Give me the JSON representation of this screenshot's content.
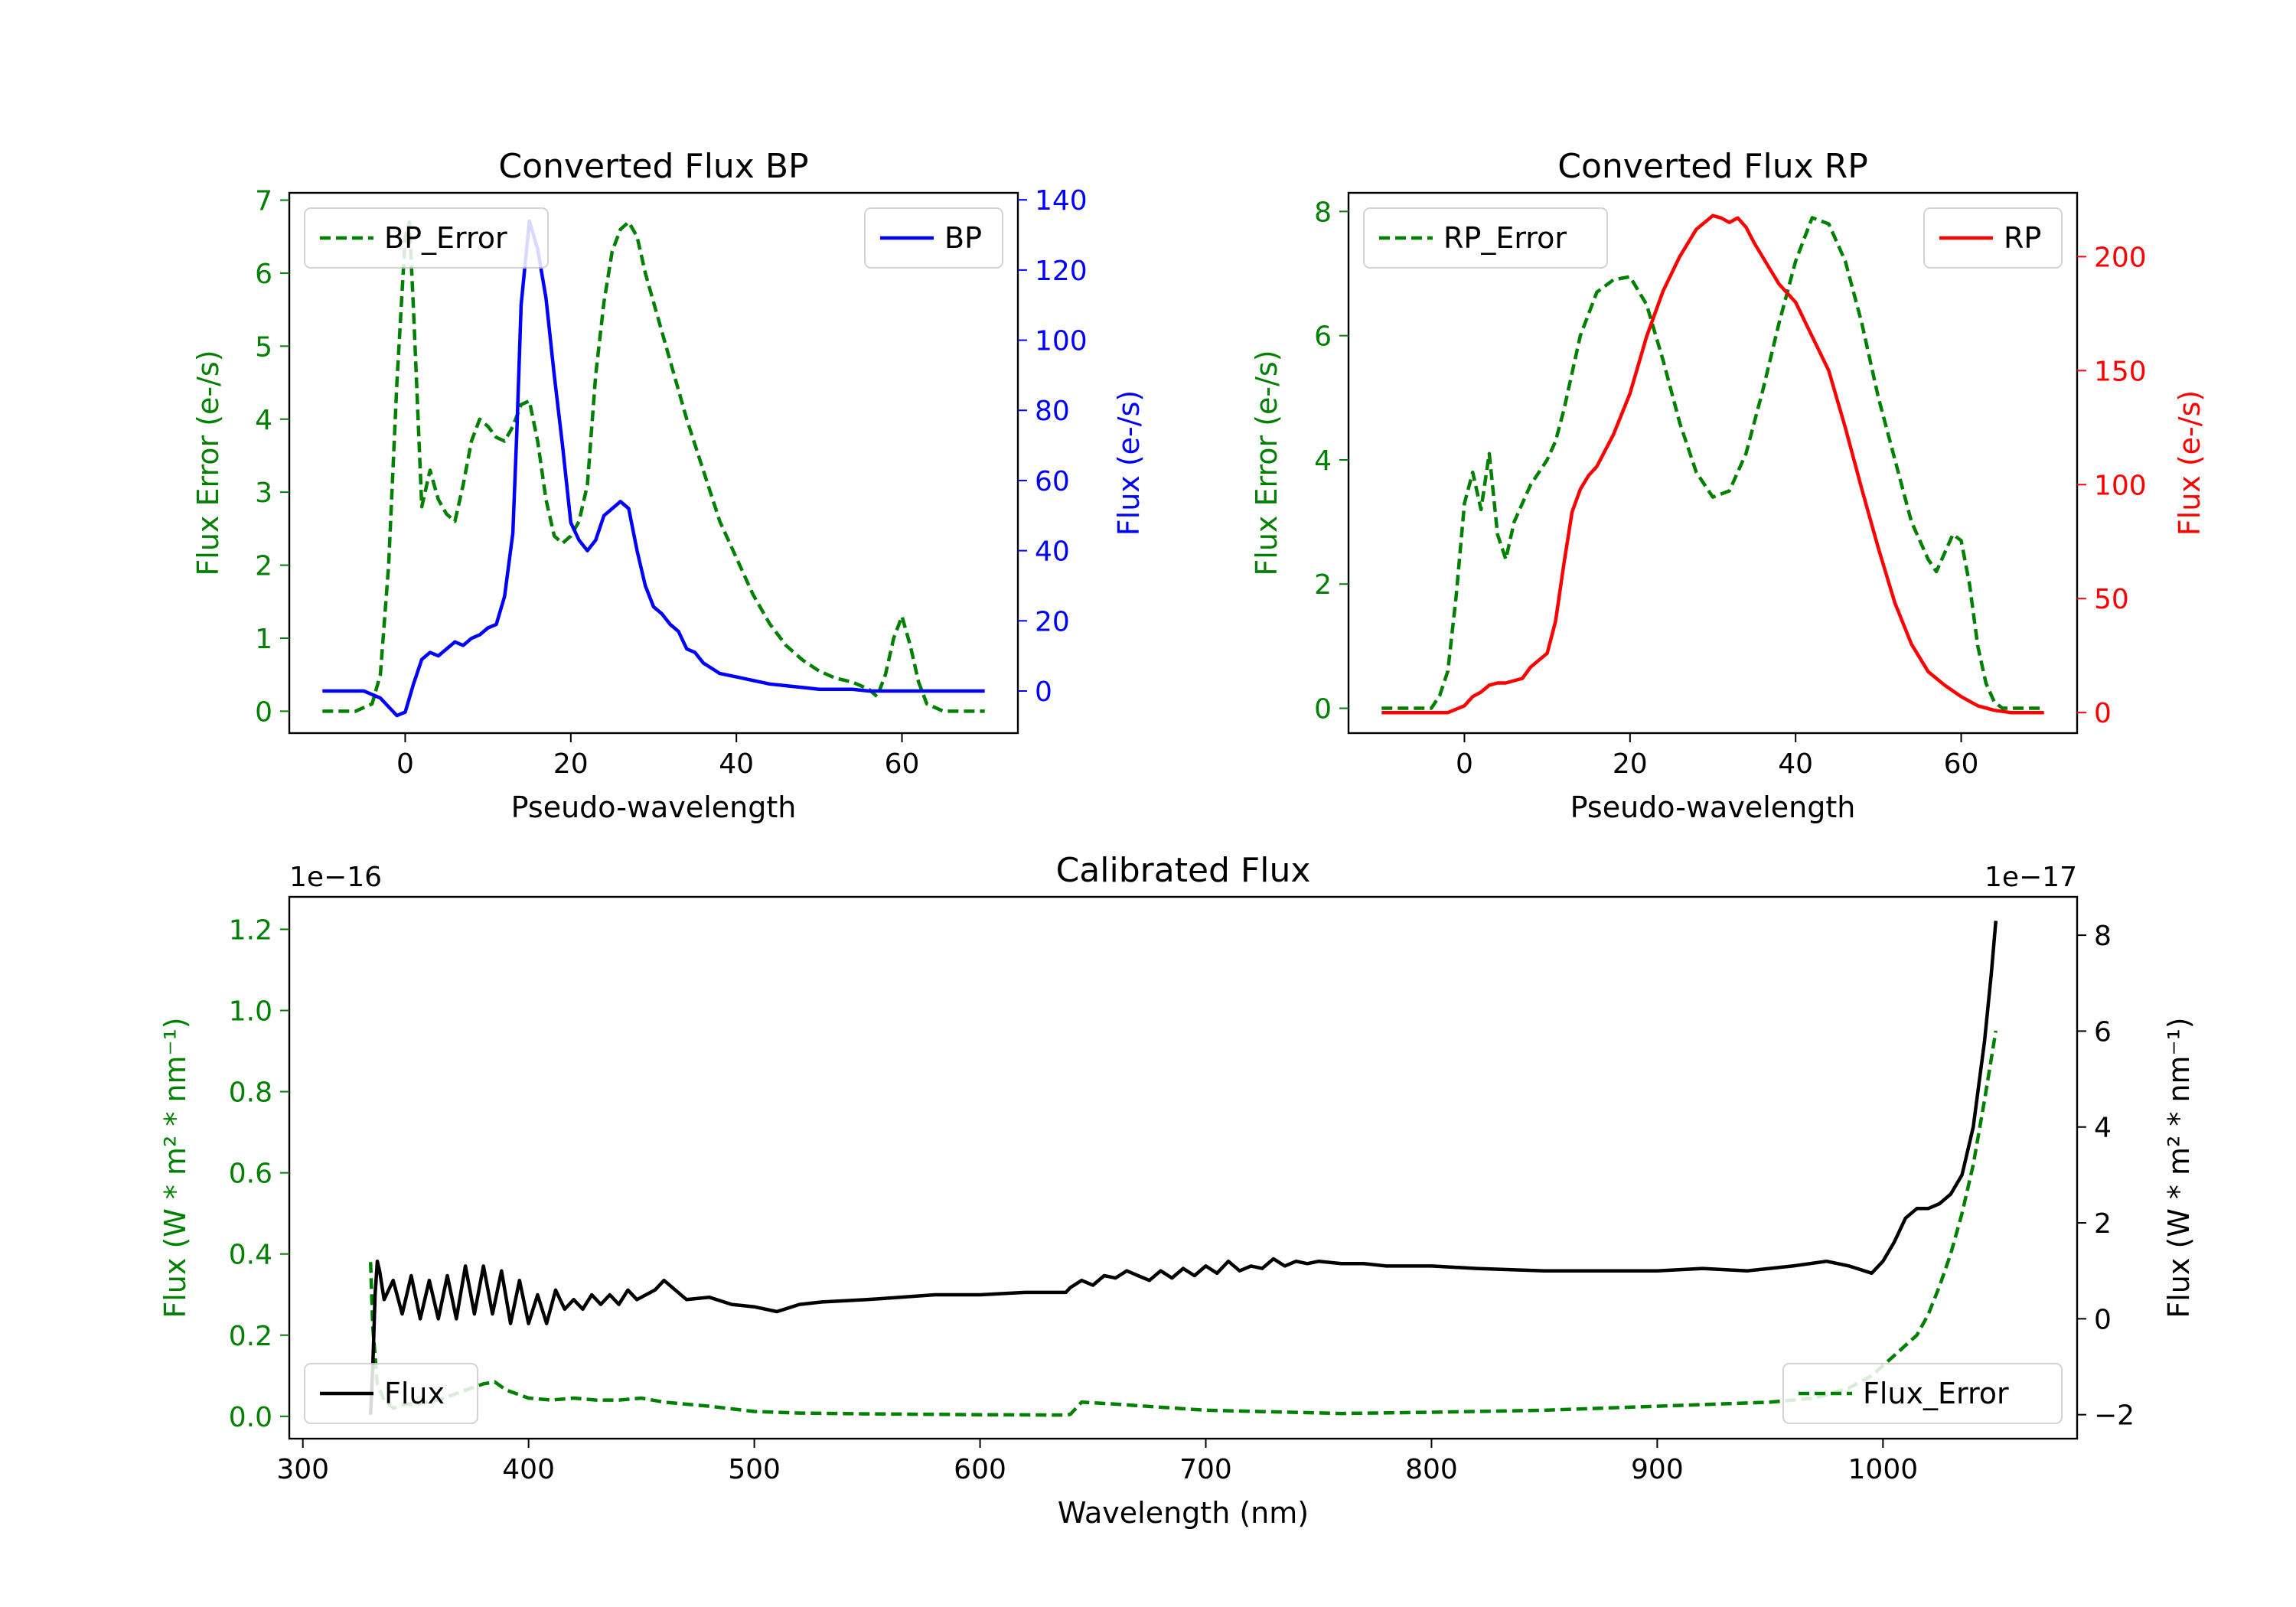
{
  "chart_data": [
    {
      "type": "line",
      "title": "Converted Flux BP",
      "xlabel": "Pseudo-wavelength",
      "ylabel_left": "Flux Error (e-/s)",
      "ylabel_right": "Flux (e-/s)",
      "xlim": [
        -14,
        74
      ],
      "ylim_left": [
        -0.3,
        7.1
      ],
      "ylim_right": [
        -12,
        142
      ],
      "xticks": [
        0,
        20,
        40,
        60
      ],
      "yticks_left": [
        0,
        1,
        2,
        3,
        4,
        5,
        6,
        7
      ],
      "yticks_right": [
        0,
        20,
        40,
        60,
        80,
        100,
        120,
        140
      ],
      "colors": {
        "left": "#008000",
        "right": "#0000ff"
      },
      "series": [
        {
          "name": "BP_Error",
          "axis": "left",
          "style": "dashed",
          "color": "#008000",
          "x": [
            -10,
            -6,
            -4,
            -3,
            -2,
            -1,
            0,
            0.5,
            1,
            2,
            3,
            4,
            5,
            6,
            7,
            8,
            9,
            10,
            11,
            12,
            13,
            14,
            15,
            16,
            17,
            18,
            19,
            20,
            21,
            22,
            23,
            24,
            25,
            26,
            27,
            28,
            29,
            30,
            32,
            34,
            36,
            38,
            40,
            42,
            44,
            46,
            48,
            50,
            52,
            54,
            56,
            57,
            58,
            59,
            60,
            61,
            62,
            63,
            65,
            70
          ],
          "values": [
            0,
            0,
            0.1,
            0.5,
            2.0,
            4.5,
            6.5,
            6.7,
            5.5,
            2.8,
            3.3,
            2.9,
            2.7,
            2.6,
            3.1,
            3.7,
            4.0,
            3.9,
            3.75,
            3.7,
            3.9,
            4.2,
            4.25,
            3.7,
            2.9,
            2.4,
            2.3,
            2.4,
            2.6,
            3.1,
            4.6,
            5.6,
            6.3,
            6.6,
            6.7,
            6.5,
            6.0,
            5.6,
            4.8,
            4.0,
            3.3,
            2.6,
            2.1,
            1.6,
            1.2,
            0.9,
            0.7,
            0.55,
            0.45,
            0.4,
            0.3,
            0.2,
            0.5,
            1.0,
            1.3,
            0.9,
            0.4,
            0.1,
            0,
            0
          ]
        },
        {
          "name": "BP",
          "axis": "right",
          "style": "solid",
          "color": "#0000ff",
          "x": [
            -10,
            -5,
            -3,
            -1,
            0,
            1,
            2,
            3,
            4,
            5,
            6,
            7,
            8,
            9,
            10,
            11,
            12,
            13,
            13.5,
            14,
            15,
            16,
            17,
            18,
            19,
            20,
            21,
            22,
            23,
            24,
            25,
            26,
            27,
            28,
            29,
            30,
            31,
            32,
            33,
            34,
            35,
            36,
            38,
            40,
            42,
            44,
            46,
            48,
            50,
            52,
            54,
            56,
            58,
            60,
            62,
            65,
            70
          ],
          "values": [
            0,
            0,
            -2,
            -7,
            -6,
            2,
            9,
            11,
            10,
            12,
            14,
            13,
            15,
            16,
            18,
            19,
            27,
            45,
            75,
            110,
            134,
            126,
            112,
            90,
            70,
            48,
            43,
            40,
            43,
            50,
            52,
            54,
            52,
            40,
            30,
            24,
            22,
            19,
            17,
            12,
            11,
            8,
            5,
            4,
            3,
            2,
            1.5,
            1,
            0.5,
            0.5,
            0.5,
            0,
            0,
            0,
            0,
            0,
            0
          ]
        }
      ],
      "legend": [
        {
          "label": "BP_Error",
          "position": "upper-left"
        },
        {
          "label": "BP",
          "position": "upper-right"
        }
      ]
    },
    {
      "type": "line",
      "title": "Converted Flux RP",
      "xlabel": "Pseudo-wavelength",
      "ylabel_left": "Flux Error (e-/s)",
      "ylabel_right": "Flux (e-/s)",
      "xlim": [
        -14,
        74
      ],
      "ylim_left": [
        -0.4,
        8.3
      ],
      "ylim_right": [
        -9,
        228
      ],
      "xticks": [
        0,
        20,
        40,
        60
      ],
      "yticks_left": [
        0,
        2,
        4,
        6,
        8
      ],
      "yticks_right": [
        0,
        50,
        100,
        150,
        200
      ],
      "colors": {
        "left": "#008000",
        "right": "#ff0000"
      },
      "series": [
        {
          "name": "RP_Error",
          "axis": "left",
          "style": "dashed",
          "color": "#008000",
          "x": [
            -10,
            -4,
            -3,
            -2,
            -1,
            0,
            1,
            2,
            3,
            4,
            5,
            6,
            7,
            8,
            9,
            10,
            11,
            12,
            14,
            16,
            18,
            20,
            22,
            24,
            26,
            28,
            30,
            32,
            34,
            36,
            38,
            40,
            42,
            44,
            46,
            48,
            50,
            52,
            54,
            55,
            56,
            57,
            58,
            59,
            60,
            61,
            62,
            63,
            64,
            65,
            70
          ],
          "values": [
            0,
            0,
            0.2,
            0.6,
            1.8,
            3.3,
            3.8,
            3.2,
            4.1,
            2.8,
            2.4,
            3.0,
            3.3,
            3.6,
            3.8,
            4.0,
            4.3,
            4.8,
            6.0,
            6.7,
            6.9,
            6.95,
            6.5,
            5.6,
            4.6,
            3.8,
            3.4,
            3.5,
            4.1,
            5.1,
            6.2,
            7.2,
            7.9,
            7.8,
            7.2,
            6.2,
            5.0,
            4.0,
            3.0,
            2.7,
            2.4,
            2.2,
            2.5,
            2.8,
            2.7,
            2.0,
            1.0,
            0.4,
            0.1,
            0,
            0
          ]
        },
        {
          "name": "RP",
          "axis": "right",
          "style": "solid",
          "color": "#ff0000",
          "x": [
            -10,
            -2,
            0,
            1,
            2,
            3,
            4,
            5,
            6,
            7,
            8,
            9,
            10,
            11,
            12,
            13,
            14,
            15,
            16,
            17,
            18,
            20,
            22,
            24,
            26,
            28,
            30,
            31,
            32,
            33,
            34,
            35,
            36,
            38,
            40,
            42,
            44,
            46,
            48,
            50,
            52,
            54,
            56,
            58,
            60,
            62,
            64,
            66,
            70
          ],
          "values": [
            0,
            0,
            3,
            7,
            9,
            12,
            13,
            13,
            14,
            15,
            20,
            23,
            26,
            40,
            65,
            88,
            98,
            104,
            108,
            115,
            122,
            140,
            165,
            185,
            200,
            212,
            218,
            217,
            215,
            217,
            213,
            206,
            200,
            188,
            180,
            165,
            150,
            125,
            98,
            72,
            48,
            30,
            18,
            12,
            7,
            3,
            1,
            0,
            0
          ]
        }
      ],
      "legend": [
        {
          "label": "RP_Error",
          "position": "upper-left"
        },
        {
          "label": "RP",
          "position": "upper-right"
        }
      ]
    },
    {
      "type": "line",
      "title": "Calibrated Flux",
      "xlabel": "Wavelength (nm)",
      "ylabel_left": "Flux (W * m² * nm⁻¹)",
      "ylabel_right": "Flux (W * m² * nm⁻¹)",
      "offset_left": "1e−16",
      "offset_right": "1e−17",
      "xlim": [
        294,
        1086
      ],
      "ylim_left": [
        -0.055,
        1.28
      ],
      "ylim_right": [
        -2.5,
        8.8
      ],
      "xticks": [
        300,
        400,
        500,
        600,
        700,
        800,
        900,
        1000
      ],
      "yticks_left": [
        "0.0",
        "0.2",
        "0.4",
        "0.6",
        "0.8",
        "1.0",
        "1.2"
      ],
      "yticks_right": [
        -2,
        0,
        2,
        4,
        6,
        8
      ],
      "colors": {
        "left": "#008000",
        "right": "#000000"
      },
      "series": [
        {
          "name": "Flux_Error",
          "axis": "left",
          "style": "dashed",
          "color": "#008000",
          "x": [
            330,
            331,
            333,
            336,
            340,
            345,
            350,
            360,
            370,
            380,
            385,
            390,
            400,
            410,
            420,
            430,
            440,
            450,
            460,
            480,
            500,
            520,
            550,
            600,
            638,
            640,
            645,
            660,
            700,
            760,
            800,
            850,
            900,
            950,
            970,
            985,
            995,
            1005,
            1015,
            1020,
            1025,
            1030,
            1035,
            1040,
            1045,
            1050
          ],
          "values": [
            0.38,
            0.22,
            0.08,
            0.04,
            0.02,
            0.03,
            0.03,
            0.04,
            0.06,
            0.08,
            0.085,
            0.065,
            0.045,
            0.04,
            0.045,
            0.04,
            0.04,
            0.045,
            0.035,
            0.025,
            0.012,
            0.008,
            0.006,
            0.004,
            0.003,
            0.005,
            0.035,
            0.03,
            0.015,
            0.007,
            0.01,
            0.015,
            0.025,
            0.035,
            0.045,
            0.07,
            0.1,
            0.15,
            0.2,
            0.25,
            0.32,
            0.4,
            0.5,
            0.62,
            0.78,
            0.95
          ]
        },
        {
          "name": "Flux",
          "axis": "right",
          "style": "solid",
          "color": "#000000",
          "x": [
            330,
            331,
            332,
            333,
            334,
            336,
            340,
            344,
            348,
            352,
            356,
            360,
            364,
            368,
            372,
            376,
            380,
            384,
            388,
            392,
            396,
            400,
            404,
            408,
            412,
            416,
            420,
            424,
            428,
            432,
            436,
            440,
            444,
            448,
            452,
            456,
            460,
            465,
            470,
            480,
            490,
            500,
            510,
            520,
            530,
            550,
            580,
            600,
            620,
            638,
            640,
            645,
            650,
            655,
            660,
            665,
            670,
            675,
            680,
            685,
            690,
            695,
            700,
            705,
            710,
            715,
            720,
            725,
            730,
            735,
            740,
            745,
            750,
            760,
            770,
            780,
            800,
            820,
            850,
            880,
            900,
            920,
            940,
            960,
            975,
            985,
            995,
            1000,
            1005,
            1010,
            1015,
            1020,
            1025,
            1030,
            1035,
            1040,
            1045,
            1048,
            1050
          ],
          "values": [
            -2.0,
            -1.0,
            0.5,
            1.2,
            1.0,
            0.4,
            0.8,
            0.1,
            0.9,
            0.0,
            0.8,
            0.0,
            0.9,
            0.0,
            1.1,
            0.1,
            1.1,
            0.1,
            1.0,
            -0.1,
            0.8,
            -0.1,
            0.5,
            -0.1,
            0.6,
            0.2,
            0.4,
            0.2,
            0.5,
            0.3,
            0.5,
            0.3,
            0.6,
            0.4,
            0.5,
            0.6,
            0.8,
            0.6,
            0.4,
            0.45,
            0.3,
            0.25,
            0.15,
            0.3,
            0.35,
            0.4,
            0.5,
            0.5,
            0.55,
            0.55,
            0.65,
            0.8,
            0.7,
            0.9,
            0.85,
            1.0,
            0.9,
            0.8,
            1.0,
            0.85,
            1.05,
            0.9,
            1.1,
            0.95,
            1.2,
            1.0,
            1.1,
            1.05,
            1.25,
            1.1,
            1.2,
            1.15,
            1.2,
            1.15,
            1.15,
            1.1,
            1.1,
            1.05,
            1.0,
            1.0,
            1.0,
            1.05,
            1.0,
            1.1,
            1.2,
            1.1,
            0.95,
            1.2,
            1.6,
            2.1,
            2.3,
            2.3,
            2.4,
            2.6,
            3.0,
            4.0,
            5.8,
            7.2,
            8.3
          ]
        }
      ],
      "legend": [
        {
          "label": "Flux",
          "position": "lower-left"
        },
        {
          "label": "Flux_Error",
          "position": "lower-right"
        }
      ]
    }
  ]
}
